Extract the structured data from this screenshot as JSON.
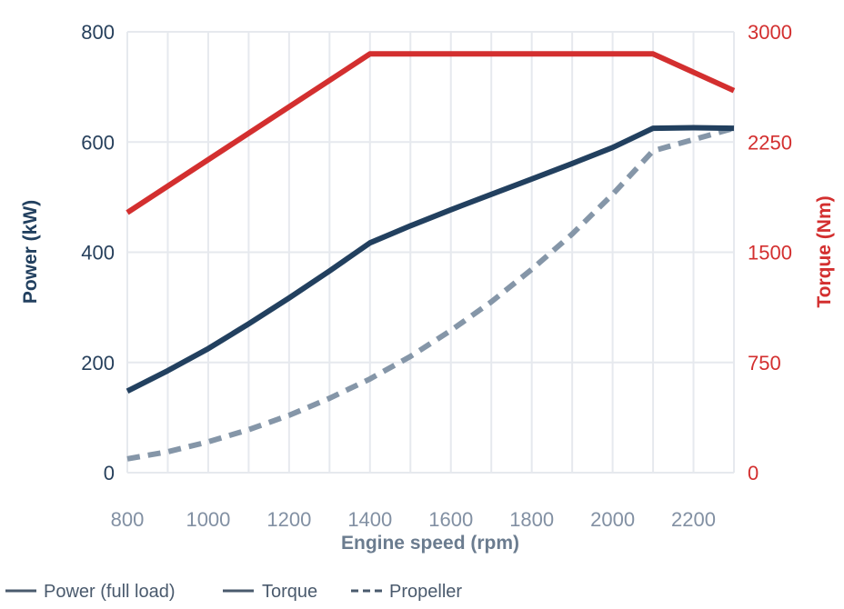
{
  "chart_data": {
    "type": "line",
    "xlabel": "Engine speed (rpm)",
    "ylabel_left": "Power (kW)",
    "ylabel_right": "Torque (Nm)",
    "xlim": [
      800,
      2300
    ],
    "ylim_left": [
      0,
      800
    ],
    "ylim_right": [
      0,
      3000
    ],
    "x_ticks": [
      800,
      1000,
      1200,
      1400,
      1600,
      1800,
      2000,
      2200
    ],
    "y_ticks_left": [
      0,
      200,
      400,
      600,
      800
    ],
    "y_ticks_right": [
      0,
      750,
      1500,
      2250,
      3000
    ],
    "grid": true,
    "legend_position": "bottom-left",
    "series": [
      {
        "name": "Power (full load)",
        "axis": "left",
        "style": "solid",
        "color": "#22405f",
        "x": [
          800,
          900,
          1000,
          1100,
          1200,
          1300,
          1400,
          1500,
          1600,
          1700,
          1800,
          1900,
          2000,
          2100,
          2200,
          2300
        ],
        "y": [
          148,
          185,
          225,
          270,
          317,
          366,
          417,
          448,
          477,
          505,
          533,
          561,
          590,
          625,
          626,
          625
        ]
      },
      {
        "name": "Torque",
        "axis": "right",
        "style": "solid",
        "color": "#d32f2f",
        "x": [
          800,
          1400,
          2100,
          2300
        ],
        "y": [
          1770,
          2850,
          2850,
          2600
        ]
      },
      {
        "name": "Propeller",
        "axis": "left",
        "style": "dashed",
        "color": "#8596a8",
        "x": [
          800,
          900,
          1000,
          1100,
          1200,
          1300,
          1400,
          1500,
          1600,
          1700,
          1800,
          1900,
          2000,
          2100,
          2200,
          2300
        ],
        "y": [
          25,
          38,
          56,
          78,
          104,
          135,
          170,
          211,
          258,
          310,
          369,
          433,
          505,
          584,
          670,
          625
        ]
      }
    ],
    "legend": [
      {
        "label": "Power (full load)",
        "style": "solid",
        "color": "#4a5a6d"
      },
      {
        "label": "Torque",
        "style": "solid",
        "color": "#4a5a6d"
      },
      {
        "label": "Propeller",
        "style": "dashed",
        "color": "#4a5a6d"
      }
    ]
  }
}
